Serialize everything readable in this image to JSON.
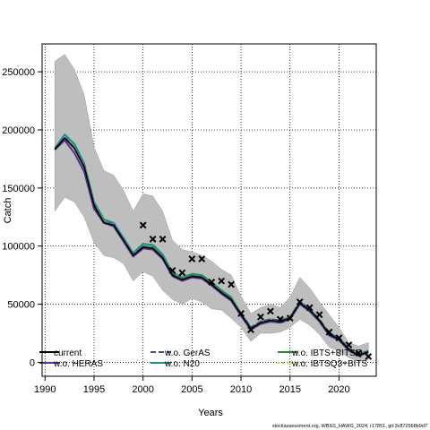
{
  "chart_data": {
    "type": "line",
    "xlabel": "Years",
    "ylabel": "Catch",
    "xlim": [
      1989.7,
      2023.8
    ],
    "ylim": [
      -12000,
      274000
    ],
    "grid": true,
    "grid_style": "dotted",
    "x_ticks": [
      1990,
      1995,
      2000,
      2005,
      2010,
      2015,
      2020
    ],
    "y_ticks": [
      0,
      50000,
      100000,
      150000,
      200000,
      250000
    ],
    "ci_band": {
      "color": "#bebebe",
      "x": [
        1991,
        1992,
        1993,
        1994,
        1995,
        1996,
        1997,
        1998,
        1999,
        2000,
        2001,
        2002,
        2003,
        2004,
        2005,
        2006,
        2007,
        2008,
        2009,
        2010,
        2011,
        2012,
        2013,
        2014,
        2015,
        2016,
        2017,
        2018,
        2019,
        2020,
        2021,
        2022,
        2023
      ],
      "upper": [
        259000,
        265000,
        252000,
        230000,
        185000,
        165000,
        161000,
        148000,
        130000,
        145000,
        143000,
        130000,
        105000,
        97000,
        95000,
        92000,
        87000,
        80000,
        75000,
        57000,
        42000,
        47000,
        50000,
        47000,
        56000,
        73000,
        64000,
        52000,
        41000,
        30000,
        17000,
        14000,
        17000
      ],
      "lower": [
        130000,
        142000,
        138000,
        125000,
        103000,
        92000,
        90000,
        85000,
        70000,
        78000,
        74000,
        62000,
        54000,
        50000,
        55000,
        52000,
        46000,
        45000,
        38000,
        30000,
        18000,
        25000,
        25000,
        26000,
        30000,
        37000,
        32000,
        24000,
        13000,
        10000,
        4000,
        1000,
        2000
      ]
    },
    "series": [
      {
        "name": "current",
        "color": "#000000",
        "dash": "solid",
        "values": [
          183000,
          193000,
          184000,
          168000,
          135000,
          120000,
          118000,
          105000,
          92000,
          99000,
          98000,
          90000,
          75000,
          71000,
          74000,
          73000,
          67000,
          60000,
          54000,
          41000,
          29000,
          34000,
          36000,
          35000,
          38000,
          51000,
          45000,
          36000,
          24000,
          20000,
          11000,
          6000,
          9000
        ]
      },
      {
        "name": "w.o. HERAS",
        "color": "#5b2c9f",
        "dash": "solid",
        "values": [
          183000,
          191000,
          180000,
          164000,
          132000,
          120000,
          117000,
          104000,
          91000,
          98000,
          97000,
          89000,
          74000,
          70000,
          73000,
          72000,
          66000,
          59000,
          53000,
          40000,
          28000,
          33000,
          35000,
          34000,
          37000,
          50000,
          44000,
          35000,
          23000,
          19000,
          10000,
          5500,
          8500
        ]
      },
      {
        "name": "w.o. GerAS",
        "color": "#3f4fa0",
        "dash": "6,3",
        "values": [
          184000,
          194000,
          185000,
          169000,
          136000,
          121000,
          119000,
          106000,
          93000,
          100000,
          99000,
          91000,
          76000,
          72000,
          75000,
          74000,
          68000,
          61000,
          55000,
          42000,
          30000,
          35000,
          37000,
          36000,
          39000,
          52000,
          46000,
          37000,
          25000,
          21000,
          12000,
          6500,
          9500
        ]
      },
      {
        "name": "w.o. N20",
        "color": "#1e8c8c",
        "dash": "solid",
        "values": [
          184000,
          196000,
          188000,
          171000,
          138000,
          123000,
          120000,
          107000,
          94000,
          102000,
          101000,
          93000,
          77000,
          73000,
          76000,
          75000,
          69000,
          62000,
          56000,
          42000,
          30000,
          35000,
          37000,
          36000,
          39000,
          52000,
          46000,
          37000,
          25000,
          21000,
          12000,
          7000,
          10000
        ]
      },
      {
        "name": "w.o. IBTS+BITSQ",
        "color": "#2e8b3e",
        "dash": "solid",
        "values": [
          183000,
          193000,
          185000,
          168000,
          135000,
          121000,
          118000,
          105000,
          92000,
          100000,
          99000,
          91000,
          75000,
          72000,
          75000,
          74000,
          68000,
          61000,
          55000,
          42000,
          29000,
          34000,
          36000,
          35000,
          38000,
          51000,
          45000,
          36000,
          24000,
          20000,
          11000,
          6000,
          9000
        ]
      },
      {
        "name": "w.o. IBTSQ3+BITS",
        "color": "#c8c81e",
        "dash": "2,3",
        "values": [
          183000,
          193000,
          185000,
          169000,
          136000,
          121000,
          118000,
          105000,
          93000,
          100000,
          99000,
          91000,
          76000,
          72000,
          75000,
          74000,
          68000,
          61000,
          55000,
          42000,
          30000,
          35000,
          37000,
          36000,
          39000,
          52000,
          46000,
          37000,
          25000,
          21000,
          12000,
          6500,
          9500
        ]
      }
    ],
    "observed": {
      "marker": "x",
      "x": [
        2000,
        2001,
        2002,
        2003,
        2004,
        2005,
        2006,
        2007,
        2008,
        2009,
        2010,
        2011,
        2012,
        2013,
        2014,
        2015,
        2016,
        2017,
        2018,
        2019,
        2020,
        2021,
        2022,
        2023
      ],
      "y": [
        118000,
        106000,
        106000,
        79000,
        77000,
        89000,
        89000,
        69000,
        70000,
        67000,
        42000,
        28000,
        39000,
        44000,
        37000,
        38000,
        52000,
        47000,
        41000,
        26000,
        21000,
        15000,
        8000,
        5000
      ]
    },
    "legend_position": "bottom"
  },
  "credit": "stockassessment.org, WBSS_HAWG_2024, r17851, git:3c872568b9d7"
}
